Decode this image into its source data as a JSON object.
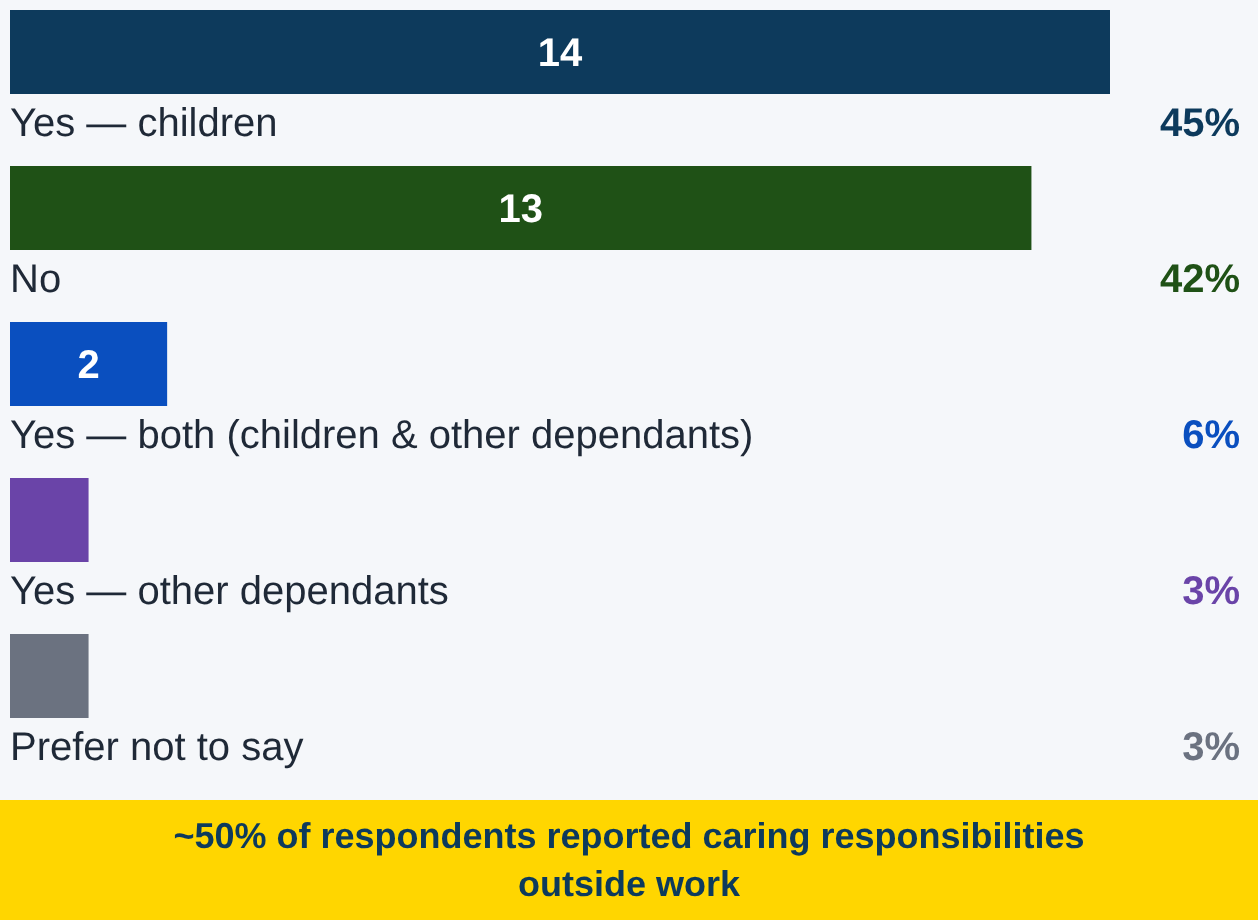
{
  "chart_data": {
    "type": "bar",
    "orientation": "horizontal",
    "categories": [
      "Yes — children",
      "No",
      "Yes — both (children & other dependants)",
      "Yes — other dependants",
      "Prefer not to say"
    ],
    "values": [
      14,
      13,
      2,
      1,
      1
    ],
    "colors": [
      "#0d3a5c",
      "#1f5116",
      "#0a4fbf",
      "#6a44a8",
      "#6b7280"
    ],
    "value_labels": [
      "14",
      "13",
      "2",
      null,
      null
    ],
    "annotations": [
      "45%",
      "42%",
      "6%",
      "3%",
      "3%",
      "~50% of respondents reported caring responsibilities outside work"
    ],
    "legend": false,
    "grid": false
  }
}
